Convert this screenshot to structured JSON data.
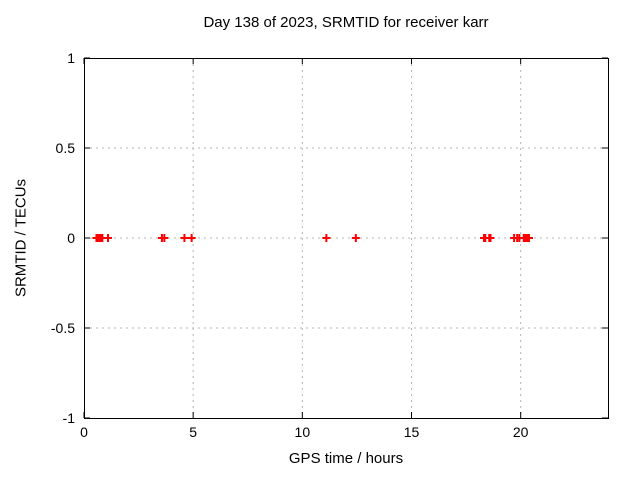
{
  "colors": {
    "background": "#ffffff",
    "marker": "#ff0000",
    "grid": "#b5b5b5",
    "axis": "#000000",
    "text": "#000000"
  },
  "chart_data": {
    "type": "scatter",
    "title": "Day 138 of 2023, SRMTID for receiver karr",
    "xlabel": "GPS time / hours",
    "ylabel": "SRMTID / TECUs",
    "xlim": [
      0,
      24
    ],
    "ylim": [
      -1,
      1
    ],
    "xticks": [
      0,
      5,
      10,
      15,
      20
    ],
    "xtick_labels": [
      "0",
      "5",
      "10",
      "15",
      "20"
    ],
    "yticks": [
      -1,
      -0.5,
      0,
      0.5,
      1
    ],
    "ytick_labels": [
      "-1",
      "-0.5",
      "0",
      "0.5",
      "1"
    ],
    "grid": true,
    "legend": "none",
    "marker_style": "plus",
    "series": [
      {
        "name": "SRMTID",
        "color": "#ff0000",
        "x": [
          0.57,
          0.6,
          0.63,
          0.66,
          0.69,
          0.72,
          0.75,
          0.78,
          0.81,
          0.84,
          1.1,
          3.57,
          3.68,
          4.6,
          4.93,
          11.1,
          12.45,
          18.32,
          18.38,
          18.56,
          18.62,
          19.7,
          19.84,
          19.94,
          20.14,
          20.22,
          20.3,
          20.38
        ],
        "y": [
          0,
          0,
          0,
          0,
          0,
          0,
          0,
          0,
          0,
          0,
          0,
          0,
          0,
          0,
          0,
          0,
          0,
          0,
          0,
          0,
          0,
          0,
          0,
          0,
          0,
          0,
          0,
          0
        ]
      }
    ]
  }
}
